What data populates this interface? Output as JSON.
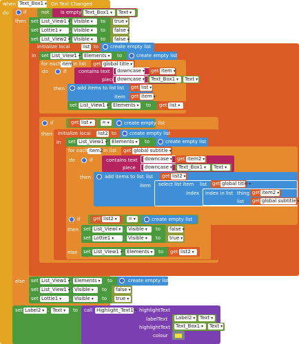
{
  "comp": {
    "text_box1": "Text_Box1",
    "list_view1": "List_View1",
    "list_view2": "List_View2",
    "lottie1": "Lottie1",
    "label2": "Label2",
    "list_viewl": "List_Viewl",
    "highlight_text1": "Highlight_Text1"
  },
  "kw": {
    "when": "when",
    "on_text_changed": "On Text Changed",
    "do": "do",
    "if": "if",
    "then": "then",
    "else": "else",
    "in": "in",
    "set": "set",
    "to": "to",
    "not": "not",
    "is_empty": "is empty",
    "initialize_local": "initialize local",
    "for_each": "for each",
    "in_list": "in list",
    "get": "get",
    "contains_text": "contains text",
    "piece": "piece",
    "downcase": "downcase",
    "add_items_to_list": "add items to list",
    "list": "list",
    "item": "item",
    "create_empty_list": "create empty list",
    "select_list_item": "select list item",
    "index": "index",
    "index_in_list": "index in list",
    "thing": "thing",
    "call": "call",
    "eq": "=",
    "dot": "."
  },
  "prop": {
    "text": "Text",
    "visible": "Visible",
    "elements": "Elements",
    "highlight_text": "highlightText",
    "label_text": "labelText",
    "highlight_text_arg": "highlightText",
    "colour": "colour"
  },
  "val": {
    "true": "true",
    "false": "false"
  },
  "names": {
    "list": "list",
    "list2": "list2",
    "item": "item",
    "item2": "item2",
    "global_title": "global title",
    "global_subtitle": "global subtitle"
  },
  "colors": {
    "event": "#e5a41f",
    "control": "#e58b2e",
    "setter": "#4b9a3d",
    "variable": "#dc5a25",
    "list": "#3e8fd8",
    "text": "#b5245e",
    "call": "#7c3fb2",
    "colour_swatch": "#f2e23e"
  }
}
